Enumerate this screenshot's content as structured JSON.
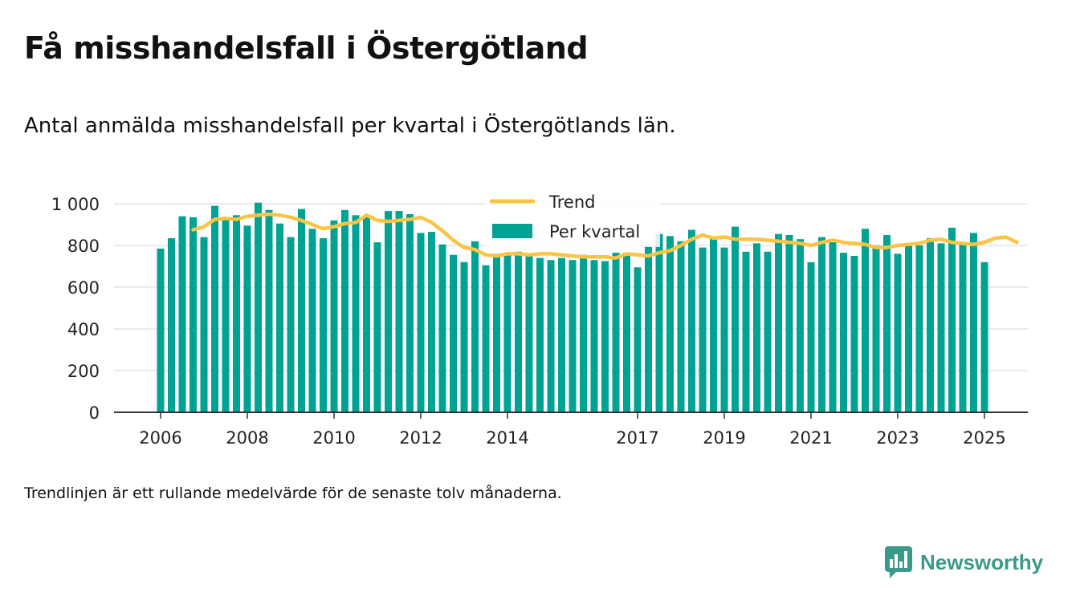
{
  "title": "Få misshandelsfall i Östergötland",
  "subtitle": "Antal anmälda misshandelsfall per kvartal i Östergötlands län.",
  "footnote": "Trendlinjen är ett rullande medelvärde för de senaste tolv månaderna.",
  "brand": "Newsworthy",
  "colors": {
    "bar": "#00a293",
    "trend": "#fcc443",
    "grid": "#dddddd",
    "axis": "#333333"
  },
  "chart_data": {
    "type": "bar",
    "x_start": "2006-Q1",
    "ylim": [
      0,
      1000
    ],
    "yticks": [
      0,
      200,
      400,
      600,
      800,
      1000
    ],
    "ytick_labels": [
      "0",
      "200",
      "400",
      "600",
      "800",
      "1 000"
    ],
    "xtick_labels": [
      "2006",
      "2008",
      "2010",
      "2012",
      "2014",
      "2017",
      "2019",
      "2021",
      "2023",
      "2025"
    ],
    "grid": true,
    "legend_position": "top-center",
    "series": [
      {
        "name": "Per kvartal",
        "type": "bar",
        "values": [
          785,
          835,
          940,
          935,
          840,
          990,
          935,
          945,
          895,
          1005,
          970,
          905,
          840,
          975,
          880,
          835,
          920,
          970,
          945,
          940,
          815,
          965,
          965,
          950,
          860,
          865,
          805,
          755,
          720,
          820,
          705,
          760,
          760,
          770,
          755,
          740,
          730,
          740,
          730,
          755,
          730,
          725,
          765,
          765,
          695,
          800,
          855,
          845,
          820,
          875,
          790,
          835,
          790,
          890,
          770,
          810,
          770,
          855,
          850,
          830,
          720,
          840,
          815,
          765,
          750,
          880,
          800,
          850,
          760,
          800,
          800,
          835,
          810,
          885,
          805,
          860,
          720
        ]
      },
      {
        "name": "Trend",
        "type": "line",
        "start_index": 3,
        "values": [
          875,
          890,
          925,
          930,
          925,
          940,
          945,
          950,
          945,
          935,
          920,
          900,
          880,
          890,
          905,
          910,
          945,
          920,
          915,
          920,
          925,
          935,
          910,
          870,
          825,
          790,
          780,
          755,
          750,
          760,
          760,
          755,
          760,
          760,
          755,
          750,
          745,
          745,
          745,
          740,
          760,
          755,
          750,
          765,
          775,
          800,
          830,
          850,
          835,
          840,
          830,
          830,
          830,
          825,
          820,
          815,
          810,
          800,
          815,
          825,
          815,
          810,
          805,
          790,
          790,
          800,
          805,
          810,
          825,
          830,
          815,
          810,
          805,
          815,
          835,
          840,
          815
        ]
      }
    ]
  }
}
